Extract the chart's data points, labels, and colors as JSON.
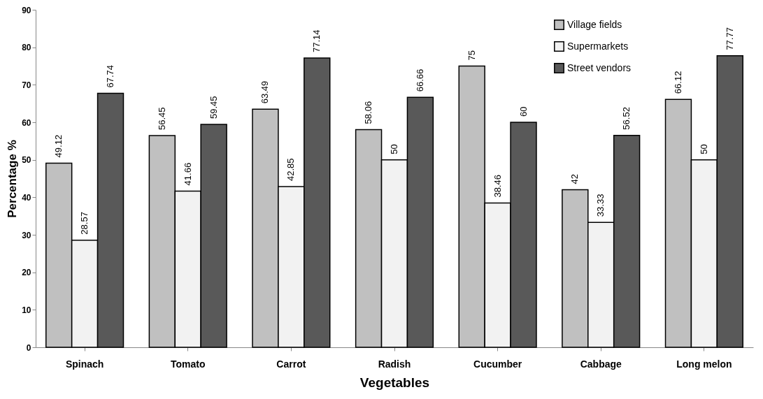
{
  "chart_data": {
    "type": "bar",
    "xlabel": "Vegetables",
    "ylabel": "Percentage %",
    "categories": [
      "Spinach",
      "Tomato",
      "Carrot",
      "Radish",
      "Cucumber",
      "Cabbage",
      "Long melon"
    ],
    "series": [
      {
        "name": "Village fields",
        "color": "#c0c0c0",
        "values": [
          49.12,
          56.45,
          63.49,
          58.06,
          75,
          42,
          66.12
        ]
      },
      {
        "name": "Supermarkets",
        "color": "#f2f2f2",
        "values": [
          28.57,
          41.66,
          42.85,
          50,
          38.46,
          33.33,
          50
        ]
      },
      {
        "name": "Street vendors",
        "color": "#595959",
        "values": [
          67.74,
          59.45,
          77.14,
          66.66,
          60,
          56.52,
          77.77
        ]
      }
    ],
    "ylim": [
      0,
      90
    ],
    "yticks": [
      0,
      10,
      20,
      30,
      40,
      50,
      60,
      70,
      80,
      90
    ],
    "grid": false,
    "legend": "top right",
    "data_labels": true
  }
}
